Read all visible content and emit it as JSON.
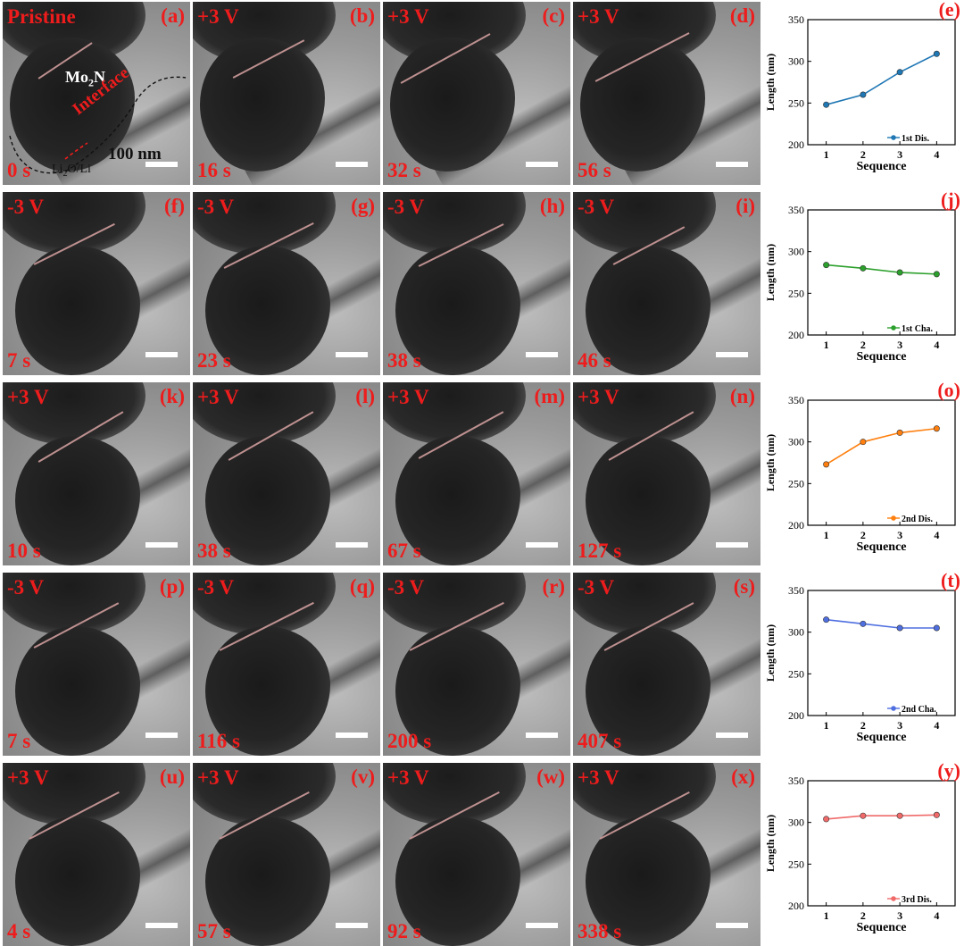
{
  "panels": [
    {
      "letter": "(a)",
      "voltage": "Pristine",
      "time": "0 s"
    },
    {
      "letter": "(b)",
      "voltage": "+3 V",
      "time": "16 s"
    },
    {
      "letter": "(c)",
      "voltage": "+3 V",
      "time": "32 s"
    },
    {
      "letter": "(d)",
      "voltage": "+3 V",
      "time": "56 s"
    },
    {
      "letter": "(f)",
      "voltage": "-3 V",
      "time": "7 s"
    },
    {
      "letter": "(g)",
      "voltage": "-3 V",
      "time": "23 s"
    },
    {
      "letter": "(h)",
      "voltage": "-3 V",
      "time": "38 s"
    },
    {
      "letter": "(i)",
      "voltage": "-3 V",
      "time": "46 s"
    },
    {
      "letter": "(k)",
      "voltage": "+3 V",
      "time": "10 s"
    },
    {
      "letter": "(l)",
      "voltage": "+3 V",
      "time": "38 s"
    },
    {
      "letter": "(m)",
      "voltage": "+3 V",
      "time": "67 s"
    },
    {
      "letter": "(n)",
      "voltage": "+3 V",
      "time": "127 s"
    },
    {
      "letter": "(p)",
      "voltage": "-3 V",
      "time": "7 s"
    },
    {
      "letter": "(q)",
      "voltage": "-3 V",
      "time": "116 s"
    },
    {
      "letter": "(r)",
      "voltage": "-3 V",
      "time": "200 s"
    },
    {
      "letter": "(s)",
      "voltage": "-3 V",
      "time": "407 s"
    },
    {
      "letter": "(u)",
      "voltage": "+3 V",
      "time": "4 s"
    },
    {
      "letter": "(v)",
      "voltage": "+3 V",
      "time": "57 s"
    },
    {
      "letter": "(w)",
      "voltage": "+3 V",
      "time": "92 s"
    },
    {
      "letter": "(x)",
      "voltage": "+3 V",
      "time": "338 s"
    }
  ],
  "annotations": {
    "material": "Mo",
    "material_sub": "2",
    "material_tail": "N",
    "interface": "Interface",
    "scale_bar": "100 nm",
    "product": "Li",
    "product_sub": "2",
    "product_tail": "O/Li"
  },
  "chart_data": [
    {
      "type": "line",
      "panel": "(e)",
      "x": [
        1,
        2,
        3,
        4
      ],
      "values": [
        248,
        260,
        287,
        309
      ],
      "series_name": "1st Dis.",
      "color": "#1f77b4",
      "xlabel": "Sequence",
      "ylabel": "Length (nm)",
      "ylim": [
        200,
        350
      ],
      "yticks": [
        200,
        250,
        300,
        350
      ],
      "xticks": [
        1,
        2,
        3,
        4
      ]
    },
    {
      "type": "line",
      "panel": "(j)",
      "x": [
        1,
        2,
        3,
        4
      ],
      "values": [
        284,
        280,
        275,
        273
      ],
      "series_name": "1st Cha.",
      "color": "#2ca02c",
      "xlabel": "Sequence",
      "ylabel": "Length (nm)",
      "ylim": [
        200,
        350
      ],
      "yticks": [
        200,
        250,
        300,
        350
      ],
      "xticks": [
        1,
        2,
        3,
        4
      ]
    },
    {
      "type": "line",
      "panel": "(o)",
      "x": [
        1,
        2,
        3,
        4
      ],
      "values": [
        273,
        300,
        311,
        316
      ],
      "series_name": "2nd Dis.",
      "color": "#ff7f0e",
      "xlabel": "Sequence",
      "ylabel": "Length (nm)",
      "ylim": [
        200,
        350
      ],
      "yticks": [
        200,
        250,
        300,
        350
      ],
      "xticks": [
        1,
        2,
        3,
        4
      ]
    },
    {
      "type": "line",
      "panel": "(t)",
      "x": [
        1,
        2,
        3,
        4
      ],
      "values": [
        315,
        310,
        305,
        305
      ],
      "series_name": "2nd Cha.",
      "color": "#4f6fe0",
      "xlabel": "Sequence",
      "ylabel": "Length (nm)",
      "ylim": [
        200,
        350
      ],
      "yticks": [
        200,
        250,
        300,
        350
      ],
      "xticks": [
        1,
        2,
        3,
        4
      ]
    },
    {
      "type": "line",
      "panel": "(y)",
      "x": [
        1,
        2,
        3,
        4
      ],
      "values": [
        304,
        308,
        308,
        309
      ],
      "series_name": "3rd Dis.",
      "color": "#f06a6a",
      "xlabel": "Sequence",
      "ylabel": "Length (nm)",
      "ylim": [
        200,
        350
      ],
      "yticks": [
        200,
        250,
        300,
        350
      ],
      "xticks": [
        1,
        2,
        3,
        4
      ]
    }
  ]
}
